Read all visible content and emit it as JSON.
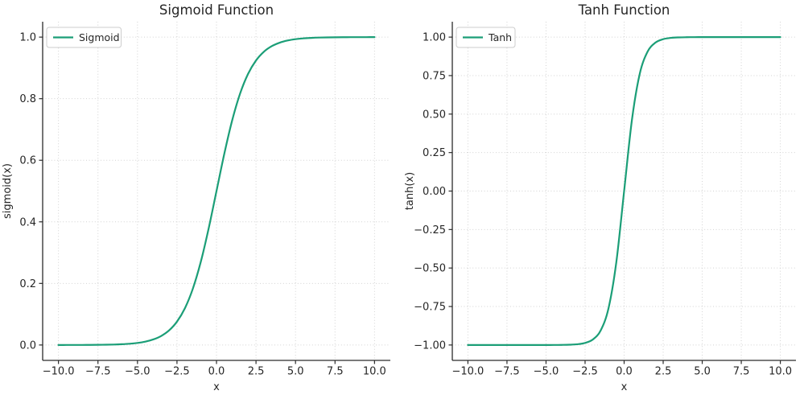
{
  "figure": {
    "background": "#ffffff"
  },
  "style": {
    "line_color": "#1b9e77",
    "grid_color": "#d2d2d2",
    "spine_color": "#2b2b2b",
    "text_color": "#262626",
    "legend_border": "#cccccc",
    "legend_bg": "#ffffff"
  },
  "chart_data": [
    {
      "type": "line",
      "title": "Sigmoid Function",
      "xlabel": "x",
      "ylabel": "sigmoid(x)",
      "xlim": [
        -11,
        11
      ],
      "ylim": [
        -0.05,
        1.05
      ],
      "grid": true,
      "xticks": [
        -10,
        -7.5,
        -5,
        -2.5,
        0,
        2.5,
        5,
        7.5,
        10
      ],
      "xtick_labels": [
        "−10.0",
        "−7.5",
        "−5.0",
        "−2.5",
        "0.0",
        "2.5",
        "5.0",
        "7.5",
        "10.0"
      ],
      "yticks": [
        0,
        0.2,
        0.4,
        0.6,
        0.8,
        1.0
      ],
      "ytick_labels": [
        "0.0",
        "0.2",
        "0.4",
        "0.6",
        "0.8",
        "1.0"
      ],
      "legend": {
        "position": "upper-left",
        "entries": [
          {
            "label": "Sigmoid",
            "color": "#1b9e77"
          }
        ]
      },
      "series": [
        {
          "name": "Sigmoid",
          "color": "#1b9e77",
          "x": [
            -10,
            -9.5,
            -9,
            -8.5,
            -8,
            -7.5,
            -7,
            -6.5,
            -6,
            -5.5,
            -5,
            -4.5,
            -4,
            -3.5,
            -3,
            -2.5,
            -2,
            -1.5,
            -1,
            -0.5,
            0,
            0.5,
            1,
            1.5,
            2,
            2.5,
            3,
            3.5,
            4,
            4.5,
            5,
            5.5,
            6,
            6.5,
            7,
            7.5,
            8,
            8.5,
            9,
            9.5,
            10
          ],
          "y": [
            0.0,
            0.0001,
            0.0001,
            0.0002,
            0.0003,
            0.0006,
            0.0009,
            0.0015,
            0.0025,
            0.0041,
            0.0067,
            0.011,
            0.018,
            0.0293,
            0.0474,
            0.0759,
            0.1192,
            0.1824,
            0.2689,
            0.3775,
            0.5,
            0.6225,
            0.7311,
            0.8176,
            0.8808,
            0.9241,
            0.9526,
            0.9707,
            0.982,
            0.989,
            0.9933,
            0.9959,
            0.9975,
            0.9985,
            0.9991,
            0.9994,
            0.9997,
            0.9998,
            0.9999,
            0.9999,
            1.0
          ]
        }
      ]
    },
    {
      "type": "line",
      "title": "Tanh Function",
      "xlabel": "x",
      "ylabel": "tanh(x)",
      "xlim": [
        -11,
        11
      ],
      "ylim": [
        -1.1,
        1.1
      ],
      "grid": true,
      "xticks": [
        -10,
        -7.5,
        -5,
        -2.5,
        0,
        2.5,
        5,
        7.5,
        10
      ],
      "xtick_labels": [
        "−10.0",
        "−7.5",
        "−5.0",
        "−2.5",
        "0.0",
        "2.5",
        "5.0",
        "7.5",
        "10.0"
      ],
      "yticks": [
        -1.0,
        -0.75,
        -0.5,
        -0.25,
        0,
        0.25,
        0.5,
        0.75,
        1.0
      ],
      "ytick_labels": [
        "−1.00",
        "−0.75",
        "−0.50",
        "−0.25",
        "0.00",
        "0.25",
        "0.50",
        "0.75",
        "1.00"
      ],
      "legend": {
        "position": "upper-left",
        "entries": [
          {
            "label": "Tanh",
            "color": "#1b9e77"
          }
        ]
      },
      "series": [
        {
          "name": "Tanh",
          "color": "#1b9e77",
          "x": [
            -10,
            -9.5,
            -9,
            -8.5,
            -8,
            -7.5,
            -7,
            -6.5,
            -6,
            -5.5,
            -5,
            -4.5,
            -4,
            -3.5,
            -3,
            -2.5,
            -2,
            -1.5,
            -1,
            -0.5,
            0,
            0.5,
            1,
            1.5,
            2,
            2.5,
            3,
            3.5,
            4,
            4.5,
            5,
            5.5,
            6,
            6.5,
            7,
            7.5,
            8,
            8.5,
            9,
            9.5,
            10
          ],
          "y": [
            -1.0,
            -1.0,
            -1.0,
            -1.0,
            -1.0,
            -1.0,
            -1.0,
            -1.0,
            -1.0,
            -1.0,
            -0.9999,
            -0.9998,
            -0.9993,
            -0.9982,
            -0.9951,
            -0.9866,
            -0.964,
            -0.9051,
            -0.7616,
            -0.4621,
            0.0,
            0.4621,
            0.7616,
            0.9051,
            0.964,
            0.9866,
            0.9951,
            0.9982,
            0.9993,
            0.9998,
            0.9999,
            1.0,
            1.0,
            1.0,
            1.0,
            1.0,
            1.0,
            1.0,
            1.0,
            1.0,
            1.0
          ]
        }
      ]
    }
  ]
}
